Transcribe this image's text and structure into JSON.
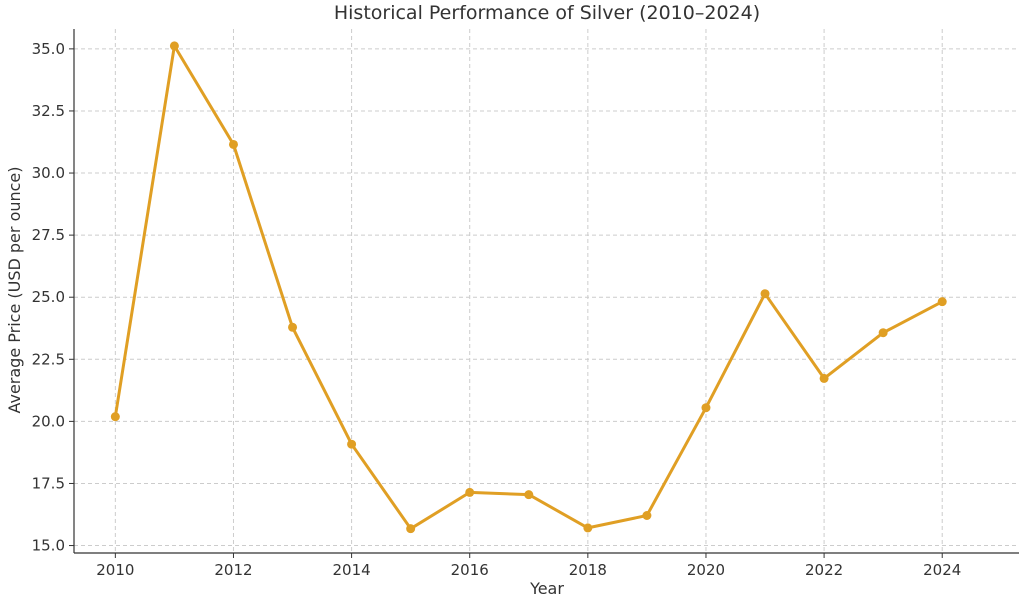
{
  "chart_data": {
    "type": "line",
    "title": "Historical Performance of Silver (2010–2024)",
    "xlabel": "Year",
    "ylabel": "Average Price (USD per ounce)",
    "xlim": [
      2009.3,
      2025.3
    ],
    "ylim": [
      14.7,
      35.8
    ],
    "x_ticks": [
      2010,
      2012,
      2014,
      2016,
      2018,
      2020,
      2022,
      2024
    ],
    "x_tick_labels": [
      "2010",
      "2012",
      "2014",
      "2016",
      "2018",
      "2020",
      "2022",
      "2024"
    ],
    "y_ticks": [
      15.0,
      17.5,
      20.0,
      22.5,
      25.0,
      27.5,
      30.0,
      32.5,
      35.0
    ],
    "y_tick_labels": [
      "15.0",
      "17.5",
      "20.0",
      "22.5",
      "25.0",
      "27.5",
      "30.0",
      "32.5",
      "35.0"
    ],
    "grid": true,
    "series": [
      {
        "color": "#e09f24",
        "x": [
          2010,
          2011,
          2012,
          2013,
          2014,
          2015,
          2016,
          2017,
          2018,
          2019,
          2020,
          2021,
          2022,
          2023,
          2024
        ],
        "values": [
          20.19,
          35.12,
          31.15,
          23.79,
          19.08,
          15.68,
          17.14,
          17.05,
          15.71,
          16.21,
          20.55,
          25.14,
          21.73,
          23.57,
          24.82
        ]
      }
    ]
  }
}
